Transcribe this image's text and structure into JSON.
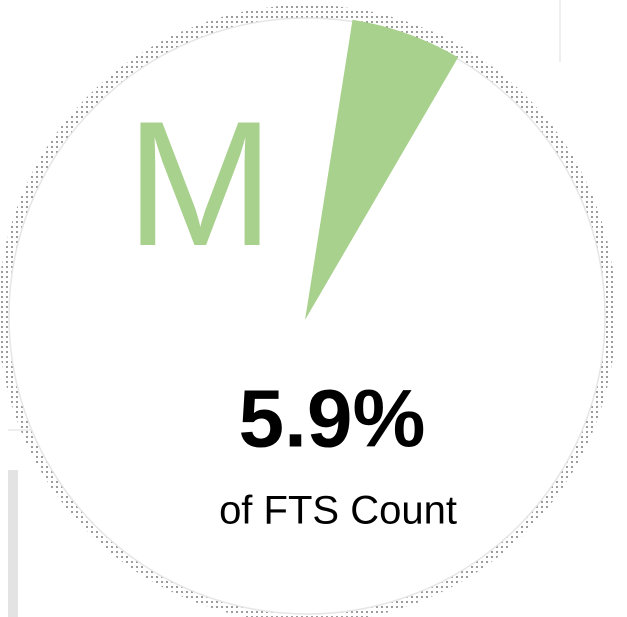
{
  "chart_data": {
    "type": "pie",
    "categories": [
      "M"
    ],
    "values": [
      5.9
    ],
    "value_labels": [
      "5.9%"
    ],
    "caption": "of FTS Count",
    "color": "#a9d18e"
  }
}
